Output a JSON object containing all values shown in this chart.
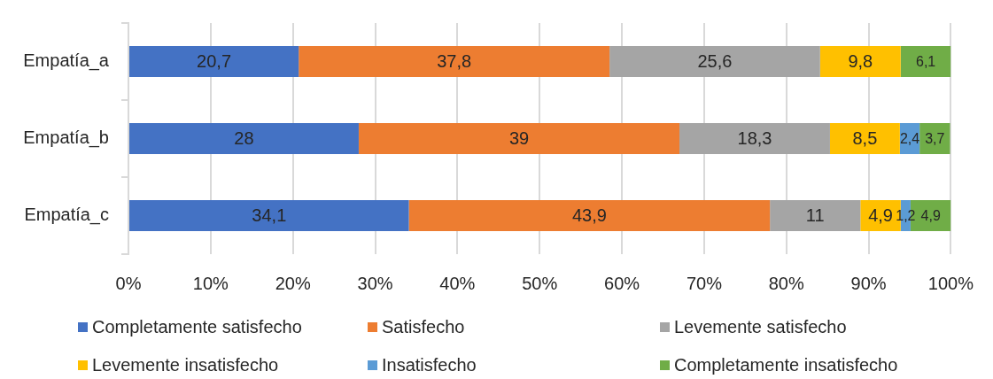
{
  "chart_data": {
    "type": "bar",
    "orientation": "horizontal",
    "stacked": true,
    "categories": [
      "Empatía_a",
      "Empatía_b",
      "Empatía_c"
    ],
    "series": [
      {
        "name": "Completamente satisfecho",
        "color": "#4472c4",
        "values": [
          20.7,
          28,
          34.1
        ],
        "value_labels": [
          "20,7",
          "28",
          "34,1"
        ]
      },
      {
        "name": "Satisfecho",
        "color": "#ed7d31",
        "values": [
          37.8,
          39,
          43.9
        ],
        "value_labels": [
          "37,8",
          "39",
          "43,9"
        ]
      },
      {
        "name": "Levemente satisfecho",
        "color": "#a5a5a5",
        "values": [
          25.6,
          18.3,
          11
        ],
        "value_labels": [
          "25,6",
          "18,3",
          "11"
        ]
      },
      {
        "name": "Levemente insatisfecho",
        "color": "#ffc000",
        "values": [
          9.8,
          8.5,
          4.9
        ],
        "value_labels": [
          "9,8",
          "8,5",
          "4,9"
        ]
      },
      {
        "name": "Insatisfecho",
        "color": "#5b9bd5",
        "values": [
          null,
          2.4,
          1.2
        ],
        "value_labels": [
          null,
          "2,4",
          "1,2"
        ]
      },
      {
        "name": "Completamente insatisfecho",
        "color": "#70ad47",
        "values": [
          6.1,
          3.7,
          4.9
        ],
        "value_labels": [
          "6,1",
          "3,7",
          "4,9"
        ]
      }
    ],
    "xlim": [
      0,
      100
    ],
    "xticks": [
      {
        "value": 0,
        "label": "0%"
      },
      {
        "value": 10,
        "label": "10%"
      },
      {
        "value": 20,
        "label": "20%"
      },
      {
        "value": 30,
        "label": "30%"
      },
      {
        "value": 40,
        "label": "40%"
      },
      {
        "value": 50,
        "label": "50%"
      },
      {
        "value": 60,
        "label": "60%"
      },
      {
        "value": 70,
        "label": "70%"
      },
      {
        "value": 80,
        "label": "80%"
      },
      {
        "value": 90,
        "label": "90%"
      },
      {
        "value": 100,
        "label": "100%"
      }
    ],
    "grid": "x",
    "legend": "bottom"
  }
}
